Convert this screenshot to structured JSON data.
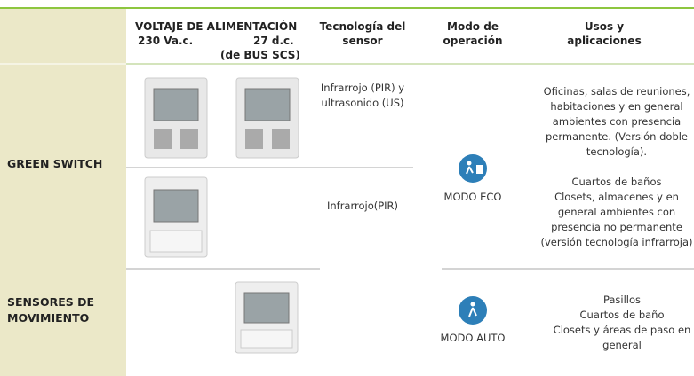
{
  "header": {
    "voltage": "VOLTAJE DE ALIMENTACIÓN",
    "v230": "230 Va.c.",
    "v27": "27 d.c.",
    "bus": "(de BUS SCS)",
    "technology": [
      "Tecnología del",
      "sensor"
    ],
    "mode": [
      "Modo de",
      "operación"
    ],
    "uses": [
      "Usos y",
      "aplicaciones"
    ]
  },
  "rows": [
    {
      "label": [
        "GREEN SWITCH"
      ],
      "mode": "MODO ECO",
      "subrows": [
        {
          "technology": [
            "Infrarrojo (PIR) y",
            "ultrasonido (US)"
          ],
          "uses": [
            "Oficinas, salas de reuniones,",
            "habitaciones y en general",
            "ambientes con presencia",
            "permanente. (Versión doble",
            "tecnología)."
          ]
        },
        {
          "technology": [
            "Infrarrojo(PIR)"
          ],
          "uses": [
            "Cuartos de baños",
            "Closets, almacenes y en",
            "general ambientes con",
            "presencia no permanente",
            "(versión tecnología infrarroja)"
          ]
        }
      ]
    },
    {
      "label": [
        "SENSORES DE",
        "MOVIMIENTO"
      ],
      "mode": "MODO AUTO",
      "subrows": [
        {
          "technology": [],
          "uses": [
            "Pasillos",
            "Cuartos de baño",
            "Closets y áreas de paso en",
            "general"
          ]
        }
      ]
    }
  ]
}
